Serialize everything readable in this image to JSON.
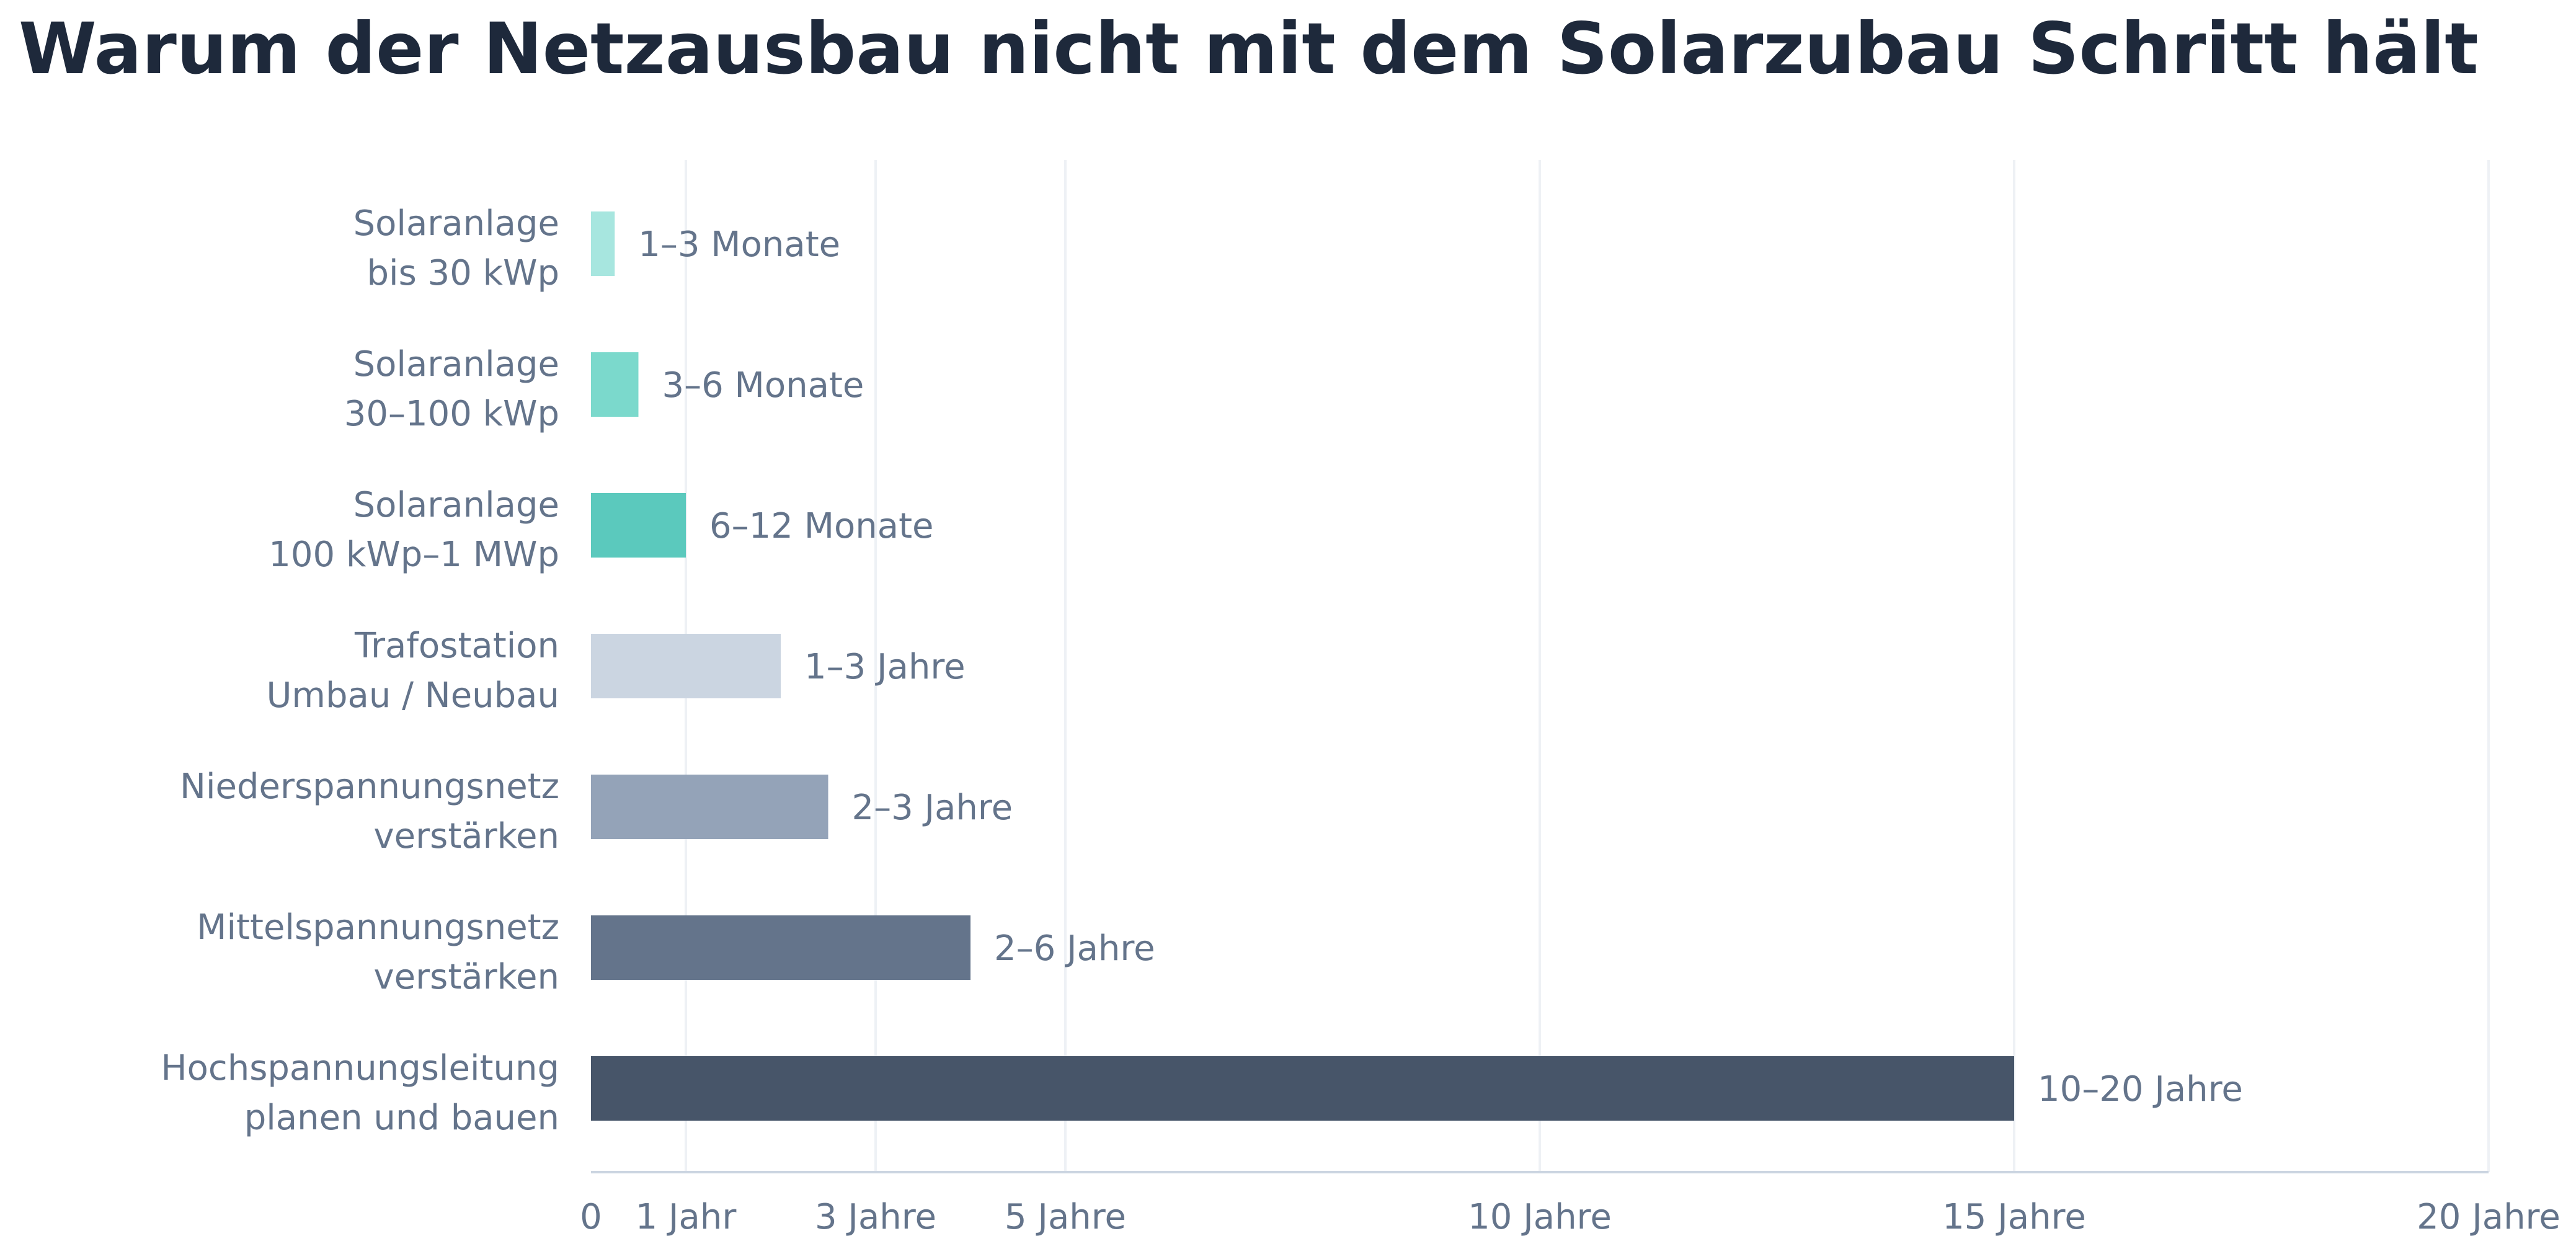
{
  "chart_data": {
    "type": "bar",
    "orientation": "horizontal",
    "title": "Warum der Netzausbau nicht mit dem Solarzubau Schritt hält",
    "xlabel": "",
    "ylabel": "",
    "xlim": [
      0,
      20
    ],
    "x_unit": "Jahre",
    "grid": "vertical",
    "legend": "none",
    "categories": [
      [
        "Solaranlage",
        "bis 30 kWp"
      ],
      [
        "Solaranlage",
        "30–100 kWp"
      ],
      [
        "Solaranlage",
        "100 kWp–1 MWp"
      ],
      [
        "Trafostation",
        "Umbau / Neubau"
      ],
      [
        "Niederspannungsnetz",
        "verstärken"
      ],
      [
        "Mittelspannungsnetz",
        "verstärken"
      ],
      [
        "Hochspannungsleitung",
        "planen und bauen"
      ]
    ],
    "values": [
      0.25,
      0.5,
      1,
      2,
      2.5,
      4,
      15
    ],
    "value_labels": [
      "1–3 Monate",
      "3–6 Monate",
      "6–12 Monate",
      "1–3 Jahre",
      "2–3 Jahre",
      "2–6 Jahre",
      "10–20 Jahre"
    ],
    "colors": [
      "#a7e6df",
      "#7bd9cc",
      "#5bc9bd",
      "#cbd5e1",
      "#94a3b8",
      "#64748b",
      "#475569"
    ],
    "x_ticks": [
      {
        "value": 0,
        "label": "0"
      },
      {
        "value": 1,
        "label": "1 Jahr"
      },
      {
        "value": 3,
        "label": "3 Jahre"
      },
      {
        "value": 5,
        "label": "5 Jahre"
      },
      {
        "value": 10,
        "label": "10 Jahre"
      },
      {
        "value": 15,
        "label": "15 Jahre"
      },
      {
        "value": 20,
        "label": "20 Jahre"
      }
    ],
    "gridline_color": "#eef1f5",
    "axis_color": "#cbd5e1",
    "text_color": "#64748b",
    "title_color": "#1e293b"
  }
}
